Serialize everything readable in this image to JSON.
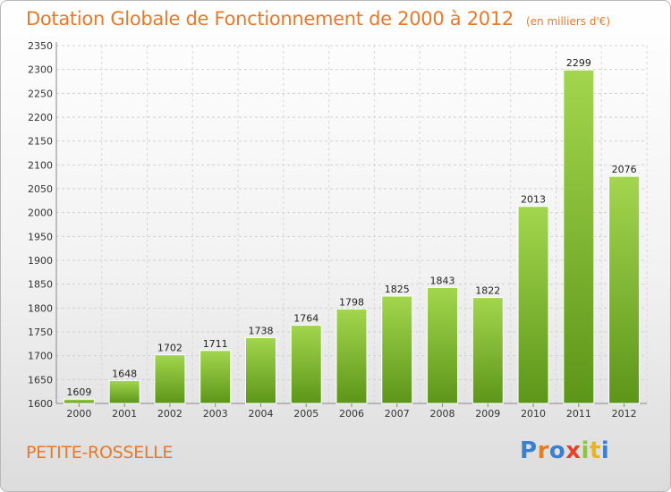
{
  "header": {
    "title": "Dotation Globale de Fonctionnement de 2000 à 2012",
    "unit_note": "(en milliers d'€)"
  },
  "footer": {
    "commune": "PETITE-ROSSELLE",
    "logo": [
      "P",
      "r",
      "o",
      "x",
      "i",
      "t",
      "i"
    ],
    "logo_colors": [
      "#3a7fd0",
      "#e87c1e",
      "#3a7fd0",
      "#e8402a",
      "#8cc63e",
      "#e8b51e",
      "#3a7fd0"
    ]
  },
  "chart_data": {
    "type": "bar",
    "categories": [
      "2000",
      "2001",
      "2002",
      "2003",
      "2004",
      "2005",
      "2006",
      "2007",
      "2008",
      "2009",
      "2010",
      "2011",
      "2012"
    ],
    "values": [
      1609,
      1648,
      1702,
      1711,
      1738,
      1764,
      1798,
      1825,
      1843,
      1822,
      2013,
      2299,
      2076
    ],
    "ylim": [
      1600,
      2350
    ],
    "yticks": [
      1600,
      1650,
      1700,
      1750,
      1800,
      1850,
      1900,
      1950,
      2000,
      2050,
      2100,
      2150,
      2200,
      2250,
      2300,
      2350
    ],
    "grid": true,
    "bar_color_top": "#9fd24a",
    "bar_color_bottom": "#5f9a1a"
  }
}
